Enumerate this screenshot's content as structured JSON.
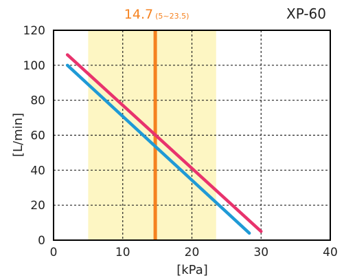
{
  "chart_data": {
    "type": "line",
    "model": "XP-60",
    "xlabel": "[kPa]",
    "ylabel": "[L/min]",
    "xlim": [
      0,
      40
    ],
    "ylim": [
      0,
      120
    ],
    "x_ticks": [
      0,
      10,
      20,
      30,
      40
    ],
    "y_ticks": [
      0,
      20,
      40,
      60,
      80,
      100,
      120
    ],
    "grid": true,
    "rated_pressure": {
      "value": 14.7,
      "label": "14.7",
      "range_label": "(5~23.5)",
      "range": [
        5,
        23.5
      ]
    },
    "series": [
      {
        "color": "#e8336d",
        "x": [
          2,
          30
        ],
        "y": [
          106,
          5
        ]
      },
      {
        "color": "#1f9ad6",
        "x": [
          2,
          28.3
        ],
        "y": [
          100,
          4
        ]
      }
    ],
    "colors": {
      "band": "#fdf6c3",
      "rated_line": "#f58220",
      "rated_text": "#f58220",
      "grid": "#222222",
      "frame": "#000000"
    }
  }
}
